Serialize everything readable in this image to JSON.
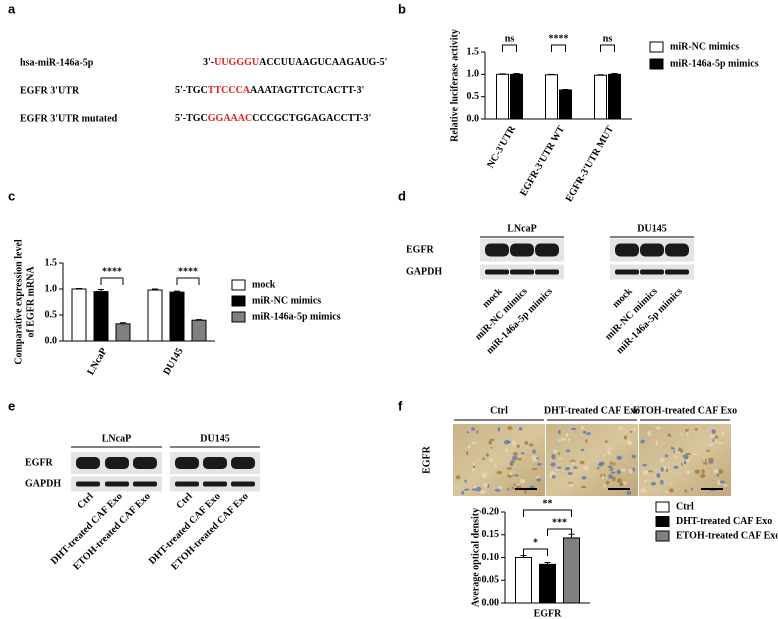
{
  "panel_labels": [
    "a",
    "b",
    "c",
    "d",
    "e",
    "f"
  ],
  "sequences": [
    {
      "name": "hsa-miR-146a-5p",
      "prefix": "3'-",
      "highlight": "UUGGGU",
      "suffix": "ACCUUAAGUCAAGAUG-5'"
    },
    {
      "name": "EGFR 3'UTR",
      "prefix": "5'-TGC",
      "highlight": "TTCCCA",
      "suffix": "AAATAGTTCTCACTT-3'"
    },
    {
      "name": "EGFR 3'UTR mutated",
      "prefix": "5'-TGC",
      "highlight": "GGAAAC",
      "suffix": "CCCGCTGGAGACCTT-3'"
    }
  ],
  "blots": [
    {
      "groups": [
        "LNcaP",
        "DU145"
      ],
      "rows": [
        "EGFR",
        "GAPDH"
      ],
      "lanes": [
        "mock",
        "miR-NC mimics",
        "miR-146a-5p mimics"
      ]
    },
    {
      "groups": [
        "LNcaP",
        "DU145"
      ],
      "rows": [
        "EGFR",
        "GAPDH"
      ],
      "lanes": [
        "Ctrl",
        "DHT-treated CAF Exo",
        "ETOH-treated CAF Exo"
      ]
    }
  ],
  "ihc": {
    "row_label": "EGFR",
    "columns": [
      "Ctrl",
      "DHT-treated CAF Exo",
      "ETOH-treated CAF Exo"
    ]
  },
  "chart_data": [
    {
      "type": "bar",
      "ylabel": "Relative luciferase activity",
      "categories": [
        "NC-3'UTR",
        "EGFR-3'UTR WT",
        "EGFR-3'UTR MUT"
      ],
      "series": [
        {
          "name": "miR-NC mimics",
          "color": "#ffffff",
          "values": [
            1.0,
            0.99,
            0.98
          ],
          "errors": [
            0.01,
            0.01,
            0.01
          ]
        },
        {
          "name": "miR-146a-5p mimics",
          "color": "#000000",
          "values": [
            1.0,
            0.65,
            1.0
          ],
          "errors": [
            0.02,
            0.01,
            0.02
          ]
        }
      ],
      "annotations": [
        "ns",
        "****",
        "ns"
      ],
      "ylim": [
        0,
        1.5
      ],
      "yticks": [
        {
          "value": 0,
          "label": "0.0"
        },
        {
          "value": 0.5,
          "label": "0.5"
        },
        {
          "value": 1,
          "label": "1.0"
        },
        {
          "value": 1.5,
          "label": "1.5"
        }
      ]
    },
    {
      "type": "bar",
      "ylabel": [
        "Comparative expression level",
        "of EGFR mRNA"
      ],
      "categories": [
        "LNcaP",
        "DU145"
      ],
      "series": [
        {
          "name": "mock",
          "color": "#ffffff",
          "values": [
            1.0,
            0.98
          ],
          "errors": [
            0.01,
            0.02
          ]
        },
        {
          "name": "miR-NC mimics",
          "color": "#000000",
          "values": [
            0.95,
            0.94
          ],
          "errors": [
            0.04,
            0.02
          ]
        },
        {
          "name": "miR-146a-5p mimics",
          "color": "#808080",
          "values": [
            0.33,
            0.4
          ],
          "errors": [
            0.02,
            0.01
          ]
        }
      ],
      "annotations": [
        "****",
        "****"
      ],
      "ylim": [
        0,
        1.5
      ],
      "yticks": [
        {
          "value": 0,
          "label": "0.0"
        },
        {
          "value": 0.5,
          "label": "0.5"
        },
        {
          "value": 1,
          "label": "1.0"
        },
        {
          "value": 1.5,
          "label": "1.5"
        }
      ]
    },
    {
      "type": "bar",
      "ylabel": "Average optical density",
      "categories": [
        "EGFR"
      ],
      "series": [
        {
          "name": "Ctrl",
          "color": "#ffffff",
          "values": [
            0.1
          ],
          "errors": [
            0.004
          ]
        },
        {
          "name": "DHT-treated CAF Exo",
          "color": "#000000",
          "values": [
            0.085
          ],
          "errors": [
            0.004
          ]
        },
        {
          "name": "ETOH-treated CAF Exo",
          "color": "#808080",
          "values": [
            0.143
          ],
          "errors": [
            0.008
          ]
        }
      ],
      "annotations": [
        "**",
        "***",
        "*"
      ],
      "ylim": [
        0,
        0.2
      ],
      "yticks": [
        {
          "value": 0,
          "label": "0.00"
        },
        {
          "value": 0.05,
          "label": "0.05"
        },
        {
          "value": 0.1,
          "label": "0.10"
        },
        {
          "value": 0.15,
          "label": "0.15"
        },
        {
          "value": 0.2,
          "label": "0.20"
        }
      ]
    }
  ]
}
